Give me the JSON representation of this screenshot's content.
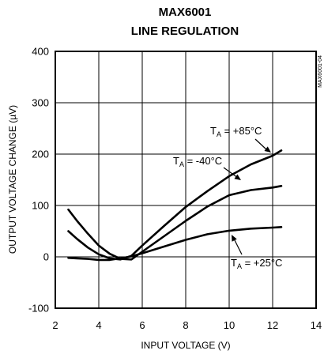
{
  "chart_data": {
    "type": "line",
    "title": "MAX6001",
    "subtitle": "LINE REGULATION",
    "xlabel": "INPUT VOLTAGE (V)",
    "ylabel": "OUTPUT VOLTAGE CHANGE (µV)",
    "xlim": [
      2,
      14
    ],
    "ylim": [
      -100,
      400
    ],
    "xticks": [
      2,
      4,
      6,
      8,
      10,
      12,
      14
    ],
    "yticks": [
      -100,
      0,
      100,
      200,
      300,
      400
    ],
    "grid": true,
    "side_label": "MAX6001-04",
    "series": [
      {
        "name": "TA = +85°C",
        "label_main": "T",
        "label_sub": "A",
        "label_rest": " = +85°C",
        "color": "#000000",
        "x": [
          2.6,
          3.0,
          3.5,
          4.0,
          4.5,
          5.0,
          5.5,
          6.0,
          7.0,
          8.0,
          9.0,
          10.0,
          11.0,
          12.0,
          12.4
        ],
        "y": [
          50,
          35,
          18,
          5,
          -3,
          -5,
          2,
          22,
          60,
          97,
          128,
          157,
          180,
          197,
          207
        ]
      },
      {
        "name": "TA = -40°C",
        "label_main": "T",
        "label_sub": "A",
        "label_rest": " = -40°C",
        "color": "#000000",
        "x": [
          2.6,
          3.0,
          3.5,
          4.0,
          4.5,
          5.0,
          5.5,
          6.0,
          7.0,
          8.0,
          9.0,
          10.0,
          11.0,
          12.0,
          12.4
        ],
        "y": [
          92,
          70,
          45,
          22,
          6,
          -4,
          -5,
          10,
          40,
          70,
          98,
          120,
          130,
          135,
          138
        ]
      },
      {
        "name": "TA = +25°C",
        "label_main": "T",
        "label_sub": "A",
        "label_rest": " = +25°C",
        "color": "#000000",
        "x": [
          2.6,
          3.0,
          3.5,
          4.0,
          4.5,
          5.0,
          5.5,
          6.0,
          7.0,
          8.0,
          9.0,
          10.0,
          11.0,
          12.0,
          12.4
        ],
        "y": [
          -2,
          -3,
          -4,
          -6,
          -6,
          -3,
          1,
          7,
          20,
          33,
          44,
          51,
          55,
          57,
          58
        ]
      }
    ]
  }
}
